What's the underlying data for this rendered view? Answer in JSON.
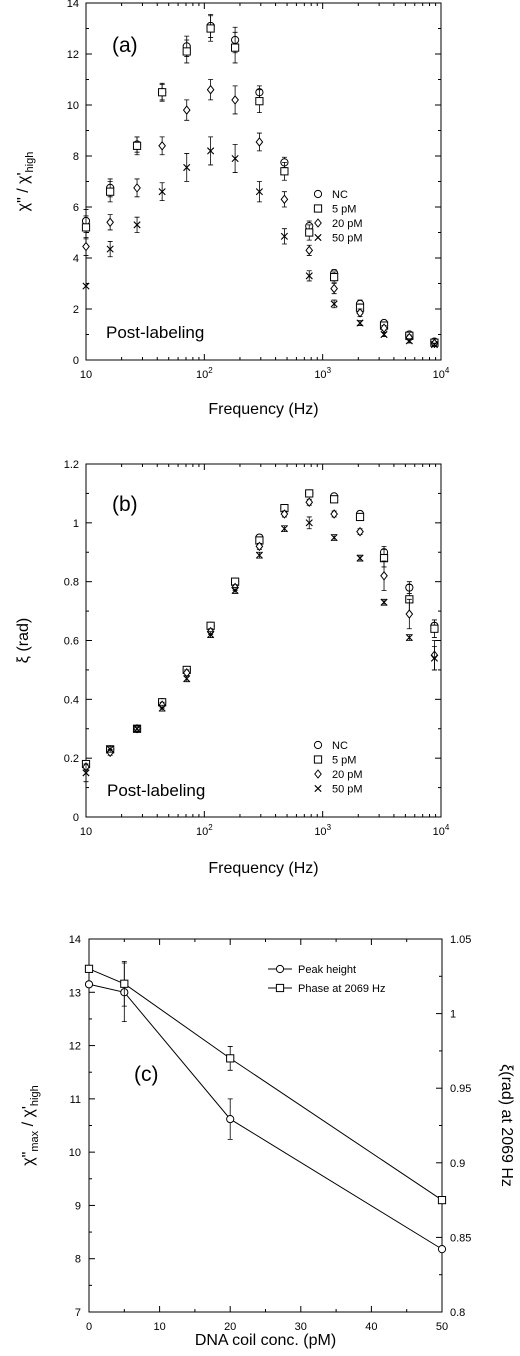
{
  "chart_data": [
    {
      "type": "scatter",
      "panel_label": "(a)",
      "annotation": "Post-labeling",
      "xlabel": "Frequency (Hz)",
      "ylabel_main": "χ\" / χ'",
      "ylabel_sub": "high",
      "xscale": "log",
      "xlim": [
        10,
        10000
      ],
      "ylim": [
        0,
        14
      ],
      "xticks": [
        10,
        100,
        1000,
        10000
      ],
      "xtick_labels": [
        {
          "base": "10",
          "exp": ""
        },
        {
          "base": "10",
          "exp": "2"
        },
        {
          "base": "10",
          "exp": "3"
        },
        {
          "base": "10",
          "exp": "4"
        }
      ],
      "yticks": [
        0,
        2,
        4,
        6,
        8,
        10,
        12,
        14
      ],
      "legend_position": "right",
      "x": [
        10,
        16,
        27,
        44,
        71,
        113,
        182,
        292,
        475,
        770,
        1250,
        2069,
        3300,
        5400,
        8800
      ],
      "series": [
        {
          "name": "NC",
          "marker": "circle",
          "values": [
            5.45,
            6.75,
            8.45,
            10.5,
            12.3,
            13.1,
            12.55,
            10.5,
            7.75,
            5.25,
            3.4,
            2.2,
            1.45,
            1.0,
            0.72
          ],
          "errors": [
            0.45,
            0.35,
            0.3,
            0.35,
            0.4,
            0.45,
            0.5,
            0.25,
            0.2,
            0.2,
            0.15,
            0.15,
            0.1,
            0.1,
            0.1
          ]
        },
        {
          "name": "5 pM",
          "marker": "square",
          "values": [
            5.2,
            6.6,
            8.4,
            10.5,
            12.1,
            13.0,
            12.25,
            10.15,
            7.4,
            5.0,
            3.25,
            2.05,
            1.35,
            0.95,
            0.68
          ],
          "errors": [
            0.45,
            0.4,
            0.35,
            0.3,
            0.45,
            0.5,
            0.6,
            0.45,
            0.35,
            0.3,
            0.2,
            0.15,
            0.1,
            0.1,
            0.1
          ]
        },
        {
          "name": "20 pM",
          "marker": "diamond",
          "values": [
            4.45,
            5.4,
            6.75,
            8.4,
            9.8,
            10.6,
            10.2,
            8.55,
            6.3,
            4.3,
            2.8,
            1.85,
            1.25,
            0.88,
            0.65
          ],
          "errors": [
            0.35,
            0.3,
            0.35,
            0.35,
            0.4,
            0.4,
            0.55,
            0.35,
            0.3,
            0.2,
            0.2,
            0.15,
            0.1,
            0.1,
            0.08
          ]
        },
        {
          "name": "50 pM",
          "marker": "cross",
          "values": [
            2.9,
            4.35,
            5.3,
            6.6,
            7.55,
            8.2,
            7.9,
            6.6,
            4.85,
            3.3,
            2.2,
            1.45,
            1.0,
            0.75,
            0.6
          ],
          "errors": [
            0.0,
            0.3,
            0.3,
            0.35,
            0.55,
            0.55,
            0.55,
            0.4,
            0.3,
            0.2,
            0.15,
            0.1,
            0.08,
            0.08,
            0.06
          ]
        }
      ]
    },
    {
      "type": "scatter",
      "panel_label": "(b)",
      "annotation": "Post-labeling",
      "xlabel": "Frequency (Hz)",
      "ylabel_main": "ξ (rad)",
      "ylabel_sub": "",
      "xscale": "log",
      "xlim": [
        10,
        10000
      ],
      "ylim": [
        0,
        1.2
      ],
      "xticks": [
        10,
        100,
        1000,
        10000
      ],
      "xtick_labels": [
        {
          "base": "10",
          "exp": ""
        },
        {
          "base": "10",
          "exp": "2"
        },
        {
          "base": "10",
          "exp": "3"
        },
        {
          "base": "10",
          "exp": "4"
        }
      ],
      "yticks": [
        0,
        0.2,
        0.4,
        0.6,
        0.8,
        1,
        1.2
      ],
      "ytick_labels": [
        "0",
        "0.2",
        "0.4",
        "0.6",
        "0.8",
        "1",
        "1.2"
      ],
      "legend_position": "bottom-right",
      "x": [
        10,
        16,
        27,
        44,
        71,
        113,
        182,
        292,
        475,
        770,
        1250,
        2069,
        3300,
        5400,
        8800
      ],
      "series": [
        {
          "name": "NC",
          "marker": "circle",
          "values": [
            0.18,
            0.23,
            0.3,
            0.39,
            0.5,
            0.65,
            0.8,
            0.95,
            1.05,
            1.1,
            1.09,
            1.03,
            0.9,
            0.78,
            0.65
          ],
          "errors": [
            0.01,
            0.01,
            0.01,
            0.01,
            0.01,
            0.01,
            0.01,
            0.01,
            0.01,
            0.01,
            0.01,
            0.01,
            0.02,
            0.02,
            0.02
          ]
        },
        {
          "name": "5 pM",
          "marker": "square",
          "values": [
            0.18,
            0.23,
            0.3,
            0.39,
            0.5,
            0.65,
            0.8,
            0.94,
            1.05,
            1.1,
            1.08,
            1.02,
            0.88,
            0.74,
            0.64
          ],
          "errors": [
            0.01,
            0.01,
            0.01,
            0.01,
            0.01,
            0.01,
            0.01,
            0.01,
            0.01,
            0.01,
            0.01,
            0.01,
            0.03,
            0.05,
            0.03
          ]
        },
        {
          "name": "20 pM",
          "marker": "diamond",
          "values": [
            0.17,
            0.22,
            0.3,
            0.38,
            0.49,
            0.63,
            0.78,
            0.92,
            1.03,
            1.07,
            1.03,
            0.97,
            0.82,
            0.69,
            0.55
          ],
          "errors": [
            0.01,
            0.01,
            0.01,
            0.01,
            0.01,
            0.01,
            0.01,
            0.01,
            0.01,
            0.01,
            0.01,
            0.01,
            0.05,
            0.05,
            0.05
          ]
        },
        {
          "name": "50 pM",
          "marker": "cross",
          "values": [
            0.15,
            0.23,
            0.3,
            0.37,
            0.47,
            0.62,
            0.77,
            0.89,
            0.98,
            1.0,
            0.95,
            0.88,
            0.73,
            0.61,
            0.54
          ],
          "errors": [
            0.03,
            0.01,
            0.01,
            0.01,
            0.01,
            0.01,
            0.01,
            0.01,
            0.01,
            0.02,
            0.01,
            0.01,
            0.01,
            0.01,
            0.04
          ]
        }
      ]
    },
    {
      "type": "line",
      "panel_label": "(c)",
      "xlabel": "DNA coil conc. (pM)",
      "ylabel_main": "χ\"",
      "ylabel_main_sub": "max",
      "ylabel_mid": " / χ'",
      "ylabel_sub": "high",
      "ylabel_right": "ξ(rad) at 2069 Hz",
      "xlim": [
        0,
        50
      ],
      "ylim": [
        7,
        14
      ],
      "ylim_right": [
        0.8,
        1.05
      ],
      "xticks": [
        0,
        10,
        20,
        30,
        40,
        50
      ],
      "yticks": [
        7,
        8,
        9,
        10,
        11,
        12,
        13,
        14
      ],
      "yticks_right": [
        0.8,
        0.85,
        0.9,
        0.95,
        1,
        1.05
      ],
      "ytick_labels_right": [
        "0.8",
        "0.85",
        "0.9",
        "0.95",
        "1",
        "1.05"
      ],
      "legend_position": "top-right",
      "x": [
        0,
        5,
        20,
        50
      ],
      "series": [
        {
          "name": "Peak height",
          "marker": "circle",
          "axis": "left",
          "values": [
            13.15,
            13.0,
            10.62,
            8.18
          ],
          "errors": [
            0.0,
            0.55,
            0.38,
            0.0
          ]
        },
        {
          "name": "Phase at 2069 Hz",
          "marker": "square",
          "axis": "right",
          "values": [
            1.03,
            1.02,
            0.97,
            0.875
          ],
          "errors": [
            0.0,
            0.015,
            0.008,
            0.0
          ]
        }
      ]
    }
  ]
}
